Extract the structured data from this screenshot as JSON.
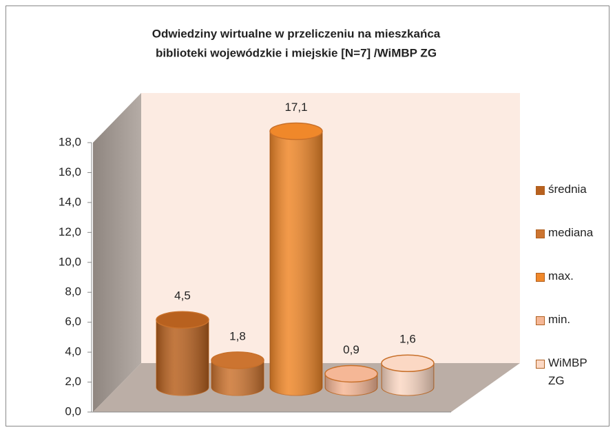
{
  "chart_data": {
    "type": "bar3d",
    "title": "Odwiedziny wirtualne w przeliczeniu na mieszkańca",
    "subtitle": "biblioteki wojewódzkie i miejskie  [N=7] /WiMBP  ZG",
    "series": [
      {
        "name": "średnia",
        "color": "#b8611f",
        "values": [
          4.5
        ],
        "value_labels": [
          "4,5"
        ]
      },
      {
        "name": "mediana",
        "color": "#cc7430",
        "values": [
          1.8
        ],
        "value_labels": [
          "1,8"
        ]
      },
      {
        "name": "max.",
        "color": "#f0882a",
        "values": [
          17.1
        ],
        "value_labels": [
          "17,1"
        ]
      },
      {
        "name": "min.",
        "color": "#f5b796",
        "values": [
          0.9
        ],
        "value_labels": [
          "0,9"
        ]
      },
      {
        "name": "WiMBP ZG",
        "color": "#fbd8c4",
        "values": [
          1.6
        ],
        "value_labels": [
          "1,6"
        ]
      }
    ],
    "ylim": [
      0,
      18
    ],
    "yticks": [
      {
        "value": 0,
        "label": "0,0"
      },
      {
        "value": 2,
        "label": "2,0"
      },
      {
        "value": 4,
        "label": "4,0"
      },
      {
        "value": 6,
        "label": "6,0"
      },
      {
        "value": 8,
        "label": "8,0"
      },
      {
        "value": 10,
        "label": "10,0"
      },
      {
        "value": 12,
        "label": "12,0"
      },
      {
        "value": 14,
        "label": "14,0"
      },
      {
        "value": 16,
        "label": "16,0"
      },
      {
        "value": 18,
        "label": "18,0"
      }
    ],
    "legend": "right"
  }
}
